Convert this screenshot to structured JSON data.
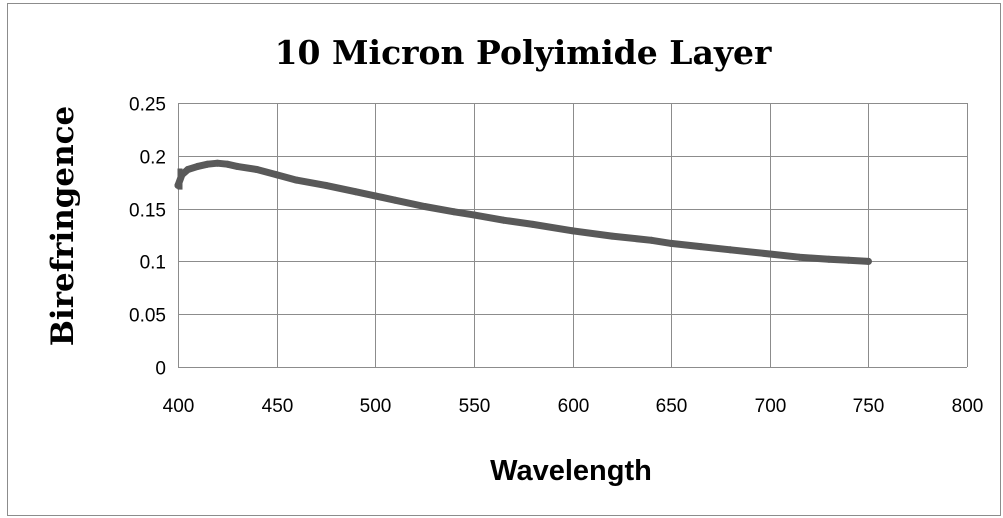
{
  "chart_data": {
    "type": "scatter",
    "title": "10 Micron Polyimide Layer",
    "xlabel": "Wavelength",
    "ylabel": "Birefringence",
    "xlim": [
      400,
      800
    ],
    "ylim": [
      0,
      0.25
    ],
    "x_ticks": [
      "400",
      "450",
      "500",
      "550",
      "600",
      "650",
      "700",
      "750",
      "800"
    ],
    "y_ticks": [
      "0",
      "0.05",
      "0.1",
      "0.15",
      "0.2",
      "0.25"
    ],
    "grid": true,
    "legend": "none",
    "series": [
      {
        "color": "#595959",
        "points": [
          [
            400,
            0.172
          ],
          [
            402,
            0.182
          ],
          [
            405,
            0.187
          ],
          [
            410,
            0.19
          ],
          [
            415,
            0.192
          ],
          [
            420,
            0.193
          ],
          [
            425,
            0.192
          ],
          [
            430,
            0.19
          ],
          [
            440,
            0.187
          ],
          [
            450,
            0.182
          ],
          [
            460,
            0.177
          ],
          [
            475,
            0.172
          ],
          [
            490,
            0.166
          ],
          [
            500,
            0.162
          ],
          [
            510,
            0.158
          ],
          [
            525,
            0.152
          ],
          [
            540,
            0.147
          ],
          [
            550,
            0.144
          ],
          [
            565,
            0.139
          ],
          [
            580,
            0.135
          ],
          [
            600,
            0.129
          ],
          [
            620,
            0.124
          ],
          [
            640,
            0.12
          ],
          [
            650,
            0.117
          ],
          [
            665,
            0.114
          ],
          [
            680,
            0.111
          ],
          [
            700,
            0.107
          ],
          [
            715,
            0.104
          ],
          [
            730,
            0.102
          ],
          [
            740,
            0.101
          ],
          [
            750,
            0.1
          ]
        ]
      }
    ]
  }
}
